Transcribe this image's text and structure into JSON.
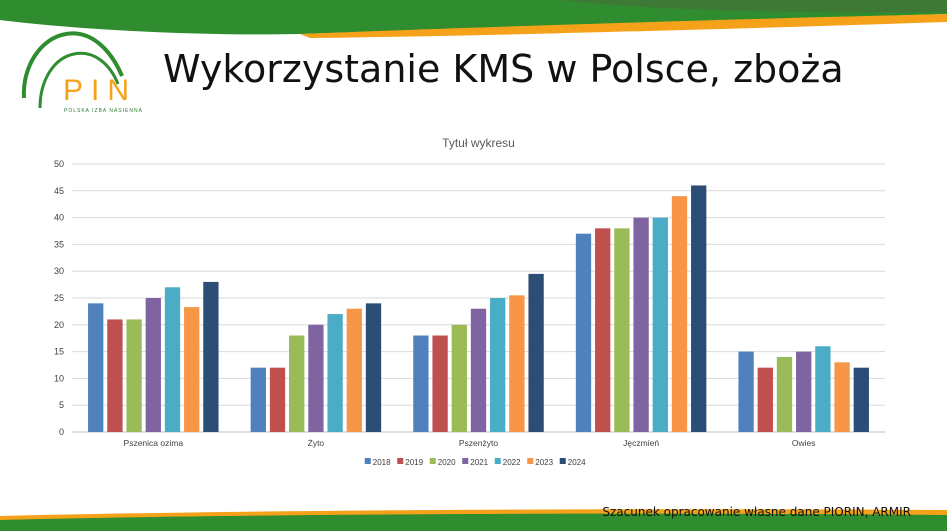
{
  "slide": {
    "title": "Wykorzystanie KMS w Polsce, zboża",
    "footnote": "Szacunek opracowanie własne dane PIORIN, ARMIR"
  },
  "logo": {
    "text": "PIN",
    "subtitle": "POLSKA IZBA NASIENNA"
  },
  "colors": {
    "banner_green": "#2f8c2f",
    "banner_orange": "#f5a21a"
  },
  "chart_data": {
    "type": "bar",
    "title": "Tytuł wykresu",
    "xlabel": "",
    "ylabel": "",
    "categories": [
      "Pszenica ozima",
      "Żyto",
      "Pszenżyto",
      "Jęczmień",
      "Owies"
    ],
    "ylim": [
      0,
      50
    ],
    "yticks": [
      0,
      5,
      10,
      15,
      20,
      25,
      30,
      35,
      40,
      45,
      50
    ],
    "grid": true,
    "legend_position": "bottom",
    "series": [
      {
        "name": "2018",
        "color": "#4f81bd",
        "values": [
          24,
          12,
          18,
          37,
          15
        ]
      },
      {
        "name": "2019",
        "color": "#c0504d",
        "values": [
          21,
          12,
          18,
          38,
          12
        ]
      },
      {
        "name": "2020",
        "color": "#9bbb59",
        "values": [
          21,
          18,
          20,
          38,
          14
        ]
      },
      {
        "name": "2021",
        "color": "#8064a2",
        "values": [
          25,
          20,
          23,
          40,
          15
        ]
      },
      {
        "name": "2022",
        "color": "#4bacc6",
        "values": [
          27,
          22,
          25,
          40,
          16
        ]
      },
      {
        "name": "2023",
        "color": "#f79646",
        "values": [
          23.3,
          23,
          25.5,
          44,
          13
        ]
      },
      {
        "name": "2024",
        "color": "#2c4d75",
        "values": [
          28,
          24,
          29.5,
          46,
          12
        ]
      }
    ]
  }
}
